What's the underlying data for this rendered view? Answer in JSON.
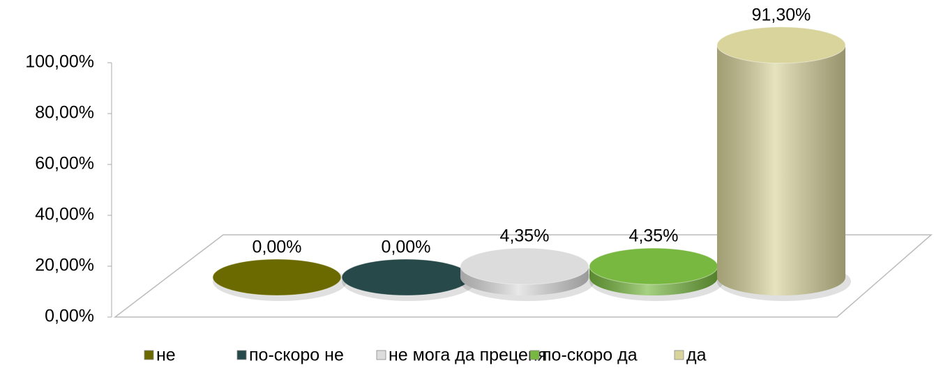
{
  "chart_data": {
    "type": "bar3d-cylinder",
    "series": [
      {
        "name": "не",
        "color": "#6b6a00",
        "values": [
          0
        ],
        "value_labels": [
          "0,00%"
        ]
      },
      {
        "name": "по-скоро не",
        "color": "#27494a",
        "values": [
          0
        ],
        "value_labels": [
          "0,00%"
        ]
      },
      {
        "name": "не мога да преценя",
        "color": "#dcdcdc",
        "values": [
          4.35
        ],
        "value_labels": [
          "4,35%"
        ]
      },
      {
        "name": "по-скоро да",
        "color": "#78b840",
        "values": [
          4.35
        ],
        "value_labels": [
          "4,35%"
        ]
      },
      {
        "name": "да",
        "color": "#d8d49c",
        "values": [
          91.3
        ],
        "value_labels": [
          "91,30%"
        ]
      }
    ],
    "ylim": [
      0,
      100
    ],
    "yticks": [
      {
        "value": 0,
        "label": "0,00%"
      },
      {
        "value": 20,
        "label": "20,00%"
      },
      {
        "value": 40,
        "label": "40,00%"
      },
      {
        "value": 60,
        "label": "60,00%"
      },
      {
        "value": 80,
        "label": "80,00%"
      },
      {
        "value": 100,
        "label": "100,00%"
      }
    ],
    "legend": "bottom"
  }
}
